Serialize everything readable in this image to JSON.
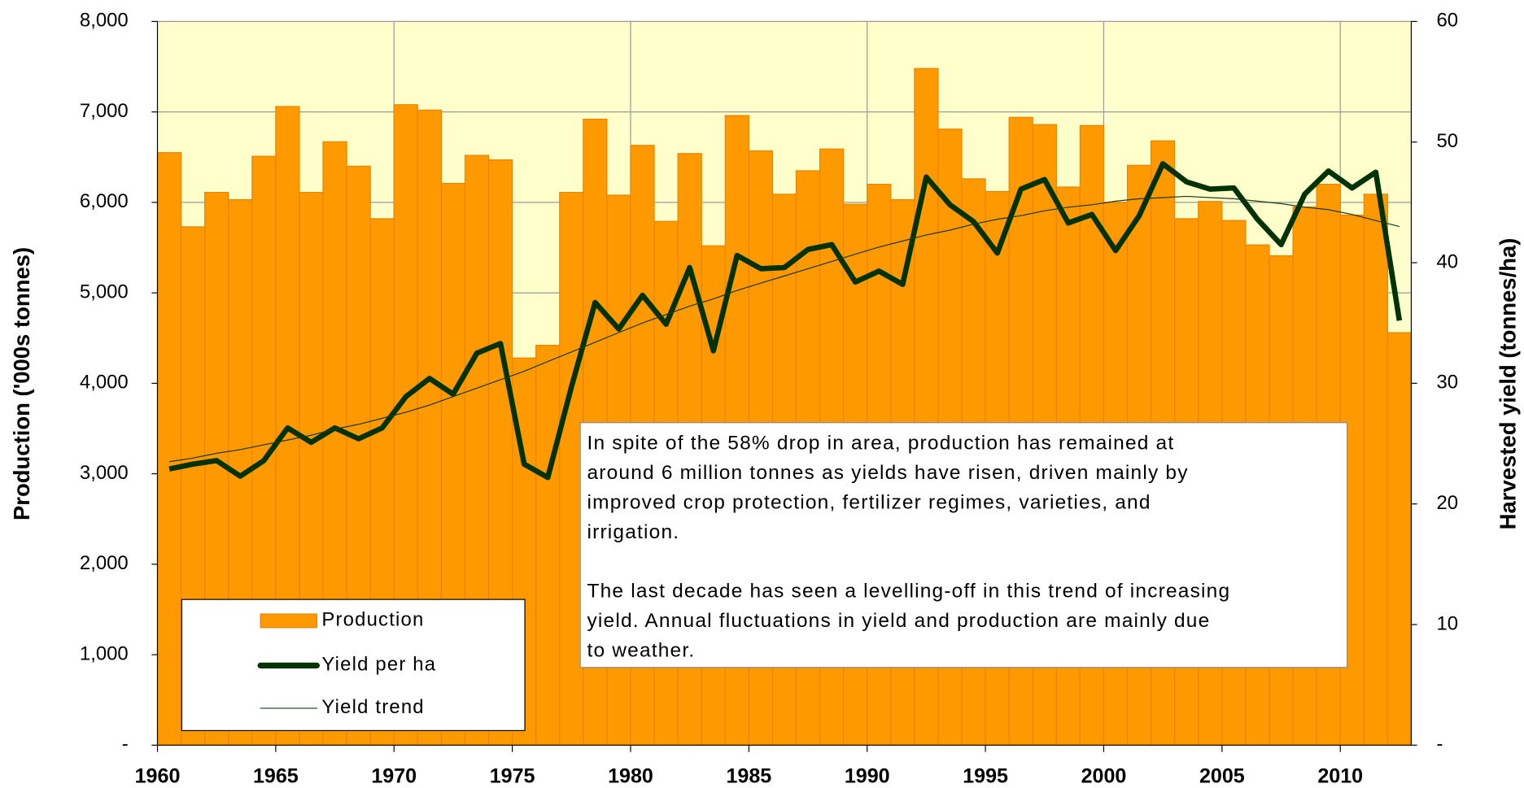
{
  "chart_data": {
    "type": "bar_line",
    "ylabel": "Production ('000s tonnes)",
    "y2label": "Harvested yield (tonnes/ha)",
    "x": [
      1960,
      1961,
      1962,
      1963,
      1964,
      1965,
      1966,
      1967,
      1968,
      1969,
      1970,
      1971,
      1972,
      1973,
      1974,
      1975,
      1976,
      1977,
      1978,
      1979,
      1980,
      1981,
      1982,
      1983,
      1984,
      1985,
      1986,
      1987,
      1988,
      1989,
      1990,
      1991,
      1992,
      1993,
      1994,
      1995,
      1996,
      1997,
      1998,
      1999,
      2000,
      2001,
      2002,
      2003,
      2004,
      2005,
      2006,
      2007,
      2008,
      2009,
      2010,
      2011,
      2012
    ],
    "xlim": [
      1960,
      2013
    ],
    "xticks": [
      1960,
      1965,
      1970,
      1975,
      1980,
      1985,
      1990,
      1995,
      2000,
      2005,
      2010
    ],
    "ylim": [
      0,
      8000
    ],
    "yticks": [
      {
        "value": 0,
        "label": "-"
      },
      {
        "value": 1000,
        "label": "1,000"
      },
      {
        "value": 2000,
        "label": "2,000"
      },
      {
        "value": 3000,
        "label": "3,000"
      },
      {
        "value": 4000,
        "label": "4,000"
      },
      {
        "value": 5000,
        "label": "5,000"
      },
      {
        "value": 6000,
        "label": "6,000"
      },
      {
        "value": 7000,
        "label": "7,000"
      },
      {
        "value": 8000,
        "label": "8,000"
      }
    ],
    "y2lim": [
      0,
      60
    ],
    "y2ticks": [
      {
        "value": 0,
        "label": "-"
      },
      10,
      20,
      30,
      40,
      50,
      60
    ],
    "grid": true,
    "background": "#ffffcc",
    "series": [
      {
        "name": "Production",
        "type": "bar",
        "color": "#ff9900",
        "values": [
          6550,
          5730,
          6110,
          6030,
          6510,
          7060,
          6110,
          6670,
          6400,
          5820,
          7080,
          7020,
          6210,
          6520,
          6470,
          4280,
          4420,
          6110,
          6920,
          6080,
          6630,
          5790,
          6540,
          5520,
          6960,
          6570,
          6090,
          6350,
          6590,
          5980,
          6200,
          6030,
          7480,
          6810,
          6260,
          6120,
          6940,
          6860,
          6170,
          6850,
          6000,
          6410,
          6680,
          5820,
          6010,
          5800,
          5530,
          5410,
          5950,
          6200,
          5860,
          6090,
          4560
        ]
      },
      {
        "name": "Yield per ha",
        "type": "line",
        "axis": "y2",
        "color": "#003300",
        "values": [
          22.9,
          23.3,
          23.6,
          22.3,
          23.6,
          26.3,
          25.1,
          26.3,
          25.4,
          26.3,
          28.9,
          30.4,
          29.1,
          32.5,
          33.3,
          23.3,
          22.2,
          29.7,
          36.7,
          34.5,
          37.3,
          34.9,
          39.6,
          32.7,
          40.6,
          39.5,
          39.6,
          41.1,
          41.5,
          38.4,
          39.3,
          38.2,
          47.1,
          44.8,
          43.4,
          40.8,
          46.1,
          46.9,
          43.3,
          44.0,
          41.0,
          43.9,
          48.2,
          46.7,
          46.1,
          46.2,
          43.6,
          41.5,
          45.7,
          47.6,
          46.2,
          47.5,
          35.2
        ]
      },
      {
        "name": "Yield trend",
        "type": "trend",
        "axis": "y2",
        "color": "#1a3a1a",
        "values": [
          23.5,
          23.8,
          24.2,
          24.5,
          24.9,
          25.3,
          25.7,
          26.2,
          26.6,
          27.1,
          27.6,
          28.2,
          28.9,
          29.6,
          30.3,
          31.0,
          31.8,
          32.6,
          33.4,
          34.2,
          35.0,
          35.7,
          36.4,
          37.0,
          37.7,
          38.3,
          38.9,
          39.5,
          40.1,
          40.7,
          41.3,
          41.8,
          42.3,
          42.7,
          43.2,
          43.6,
          43.9,
          44.3,
          44.6,
          44.8,
          45.1,
          45.3,
          45.4,
          45.5,
          45.4,
          45.3,
          45.1,
          44.9,
          44.6,
          44.4,
          44.0,
          43.5,
          43.0
        ]
      }
    ],
    "annotation": [
      [
        "In spite of the 58% drop in area, production has remained at",
        "around 6 million tonnes as yields have risen, driven mainly by",
        "improved crop protection, fertilizer regimes, varieties, and",
        "irrigation."
      ],
      [
        "The last decade has seen a levelling-off in this trend of increasing",
        "yield.  Annual fluctuations in yield and production are mainly due",
        "to weather."
      ]
    ]
  }
}
